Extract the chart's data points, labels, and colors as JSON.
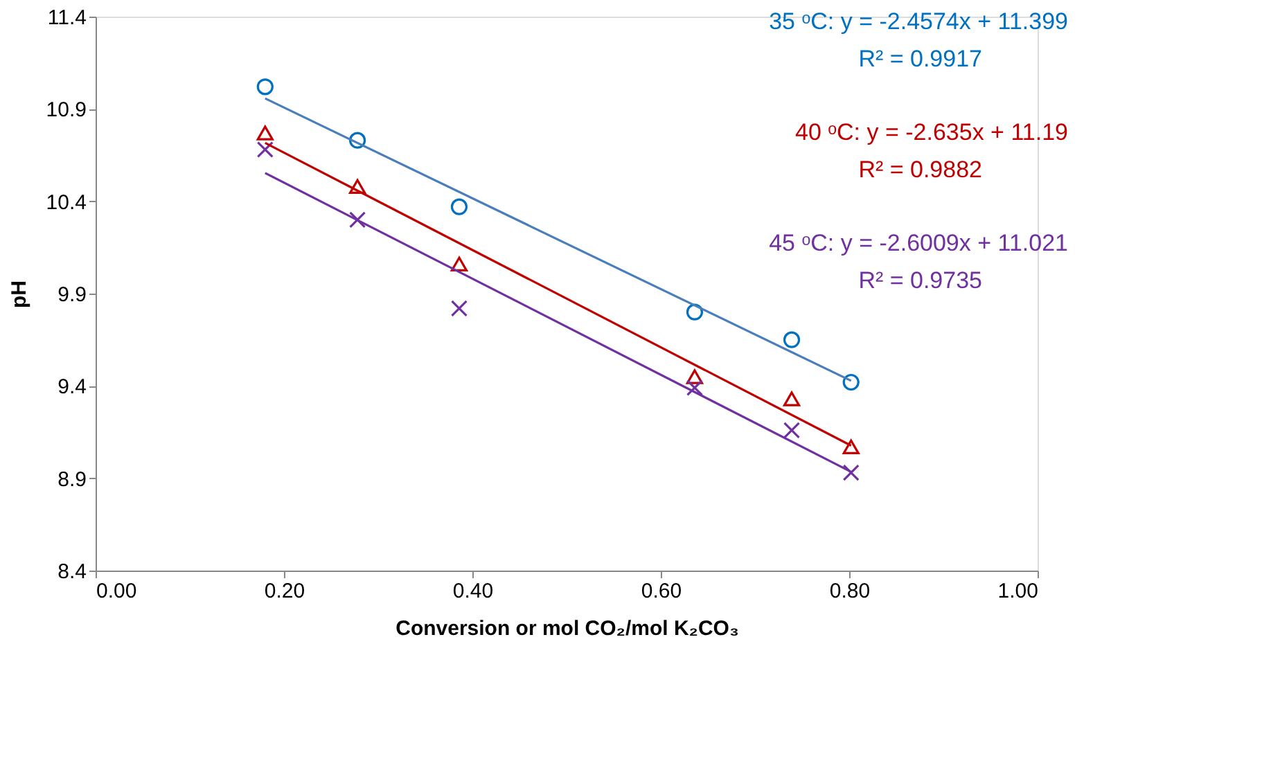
{
  "chart_data": {
    "type": "scatter",
    "xlabel": "Conversion or mol CO₂/mol K₂CO₃",
    "ylabel": "pH",
    "xlim": [
      0.0,
      1.0
    ],
    "xticks": [
      {
        "value": 0,
        "label": "0.00"
      },
      {
        "value": 0.2,
        "label": "0.20"
      },
      {
        "value": 0.4,
        "label": "0.40"
      },
      {
        "value": 0.6,
        "label": "0.60"
      },
      {
        "value": 0.8,
        "label": "0.80"
      },
      {
        "value": 1.0,
        "label": "1.00"
      }
    ],
    "ylim": [
      8.4,
      11.4
    ],
    "yticks": [
      8.4,
      8.9,
      9.4,
      9.9,
      10.4,
      10.9,
      11.4
    ],
    "grid": false,
    "series": [
      {
        "type": "scatter",
        "marker": "circle",
        "color": "#0070c0",
        "x": [
          0.18,
          0.278,
          0.386,
          0.636,
          0.739,
          0.802
        ],
        "values": [
          11.02,
          10.73,
          10.37,
          9.8,
          9.65,
          9.42
        ]
      },
      {
        "type": "scatter",
        "marker": "triangle",
        "color": "#c00000",
        "x": [
          0.18,
          0.278,
          0.386,
          0.636,
          0.739,
          0.802
        ],
        "values": [
          10.77,
          10.48,
          10.06,
          9.45,
          9.33,
          9.07
        ]
      },
      {
        "type": "scatter",
        "marker": "cross",
        "color": "#7030a0",
        "x": [
          0.18,
          0.278,
          0.386,
          0.636,
          0.739,
          0.802
        ],
        "values": [
          10.68,
          10.3,
          9.82,
          9.39,
          9.16,
          8.93
        ]
      },
      {
        "type": "line",
        "marker": "none",
        "line_style": "solid",
        "color": "#4a7ebb",
        "x": [
          0.18,
          0.802
        ],
        "values": [
          10.957,
          9.428
        ]
      },
      {
        "type": "line",
        "marker": "none",
        "line_style": "solid",
        "color": "#c00000",
        "x": [
          0.18,
          0.802
        ],
        "values": [
          10.716,
          9.077
        ]
      },
      {
        "type": "line",
        "marker": "none",
        "line_style": "solid",
        "color": "#7030a0",
        "x": [
          0.18,
          0.802
        ],
        "values": [
          10.553,
          8.935
        ]
      }
    ],
    "annotations": [
      "35 ᵒC: y = -2.4574x + 11.399",
      "R² = 0.9917",
      "40 ᵒC: y = -2.635x + 11.19",
      "R² = 0.9882",
      "45 ᵒC: y = -2.6009x + 11.021",
      "R² = 0.9735"
    ]
  }
}
